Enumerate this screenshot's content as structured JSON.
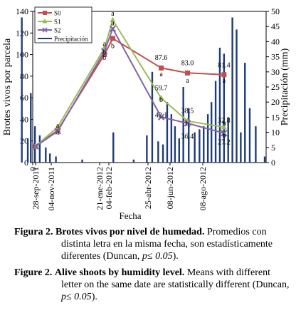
{
  "chart_data": {
    "type": "line",
    "xlabel": "Fecha",
    "ylabel_left": "Brotes vivos por parcela",
    "ylabel_right": "Precipitación (mm)",
    "ylim_left": [
      0,
      140
    ],
    "yticks_left": [
      "0",
      "20",
      "40",
      "60",
      "80",
      "100",
      "120",
      "140"
    ],
    "ylim_right": [
      0,
      50
    ],
    "yticks_right": [
      "0",
      "5",
      "10",
      "15",
      "20",
      "25",
      "30",
      "35",
      "40",
      "45",
      "50"
    ],
    "xticks": [
      "0",
      "28-sep-2011",
      "04-nov-2011",
      "21-ene-2012",
      "04-feb-2012",
      "25-abr-2012",
      "08-jun-2012",
      "08-ago-2012"
    ],
    "legend_position": "top-left",
    "series": [
      {
        "name": "S0",
        "color": "#c0504d",
        "marker": "square",
        "x": [
          "28-sep-2011",
          "04-nov-2011",
          "21-ene-2012",
          "04-feb-2012",
          "25-abr-2012",
          "08-jun-2012",
          "08-ago-2012"
        ],
        "values": [
          15,
          30,
          100,
          115,
          87.6,
          83.0,
          81.4
        ]
      },
      {
        "name": "S1",
        "color": "#9bbb59",
        "marker": "triangle",
        "x": [
          "28-sep-2011",
          "04-nov-2011",
          "21-ene-2012",
          "04-feb-2012",
          "25-abr-2012",
          "08-jun-2012",
          "08-ago-2012"
        ],
        "values": [
          15,
          33,
          106,
          132,
          59.7,
          38.5,
          32.8
        ]
      },
      {
        "name": "S2",
        "color": "#8064a2",
        "marker": "x",
        "x": [
          "28-sep-2011",
          "04-nov-2011",
          "21-ene-2012",
          "04-feb-2012",
          "25-abr-2012",
          "08-jun-2012",
          "08-ago-2012"
        ],
        "values": [
          15,
          29,
          103,
          124,
          42.1,
          36.4,
          27.2
        ]
      },
      {
        "name": "Precipitación",
        "color": "#1f3c78",
        "axis": "right",
        "type": "bar",
        "x": [
          "05-sep-2011",
          "15-sep-2011",
          "20-sep-2011",
          "27-sep-2011",
          "05-oct-2011",
          "15-oct-2011",
          "22-oct-2011",
          "01-nov-2011",
          "15-dic-2011",
          "05-feb-2012",
          "10-mar-2012",
          "01-abr-2012",
          "10-abr-2012",
          "20-abr-2012",
          "28-abr-2012",
          "05-may-2012",
          "12-may-2012",
          "18-may-2012",
          "25-may-2012",
          "01-jun-2012",
          "10-jun-2012",
          "20-jun-2012",
          "28-jun-2012",
          "05-jul-2012",
          "12-jul-2012",
          "18-jul-2012",
          "25-jul-2012",
          "01-ago-2012",
          "08-ago-2012",
          "15-ago-2012",
          "22-ago-2012",
          "29-ago-2012",
          "05-sep-2012",
          "12-sep-2012",
          "20-sep-2012",
          "30-sep-2012",
          "15-oct-2012"
        ],
        "values": [
          48,
          8,
          23,
          12,
          9,
          5,
          3,
          2,
          1,
          10,
          1,
          9,
          30,
          7,
          6,
          20,
          16,
          12,
          8,
          25,
          18,
          10,
          11,
          12,
          16,
          20,
          27,
          38,
          36,
          15,
          48,
          44,
          10,
          33,
          18,
          12,
          2
        ]
      }
    ],
    "annotations": [
      {
        "text": "a",
        "x": "04-nov-2011",
        "y": 32
      },
      {
        "text": "a",
        "x": "04-nov-2011",
        "y": 26
      },
      {
        "text": "a",
        "x": "21-ene-2012",
        "y": 108
      },
      {
        "text": "b",
        "x": "21-ene-2012",
        "y": 100
      },
      {
        "text": "b",
        "x": "21-ene-2012",
        "y": 95
      },
      {
        "text": "a",
        "x": "04-feb-2012",
        "y": 136
      },
      {
        "text": "a",
        "x": "04-feb-2012",
        "y": 127
      },
      {
        "text": "b",
        "x": "04-feb-2012",
        "y": 106
      },
      {
        "text": "87.6",
        "x": "25-abr-2012",
        "y": 95
      },
      {
        "text": "a",
        "x": "25-abr-2012",
        "y": 80
      },
      {
        "text": "59.7",
        "x": "25-abr-2012",
        "y": 67
      },
      {
        "text": "b",
        "x": "25-abr-2012",
        "y": 56
      },
      {
        "text": "42.1",
        "x": "25-abr-2012",
        "y": 42
      },
      {
        "text": "83.0",
        "x": "08-jun-2012",
        "y": 90
      },
      {
        "text": "a",
        "x": "08-jun-2012",
        "y": 74
      },
      {
        "text": "38.5",
        "x": "08-jun-2012",
        "y": 46
      },
      {
        "text": "b",
        "x": "08-jun-2012",
        "y": 34
      },
      {
        "text": "36.4",
        "x": "08-jun-2012",
        "y": 22
      },
      {
        "text": "81.4",
        "x": "08-ago-2012",
        "y": 88
      },
      {
        "text": "a",
        "x": "08-ago-2012",
        "y": 74
      },
      {
        "text": "32.8",
        "x": "08-ago-2012",
        "y": 37
      },
      {
        "text": "b",
        "x": "08-ago-2012",
        "y": 34
      },
      {
        "text": "27.2",
        "x": "08-ago-2012",
        "y": 17
      },
      {
        "text": "b",
        "x": "08-ago-2012",
        "y": 23
      }
    ]
  },
  "caption": {
    "es_label": "Figura 2.",
    "es_title": "Brotes vivos por nivel de humedad.",
    "es_text": "Promedios con distinta letra en la misma fecha, son estadísticamente diferentes (Duncan,",
    "es_stat": "p≤ 0.05",
    "es_end": ").",
    "en_label": "Figure 2.",
    "en_title": "Alive shoots by humidity level.",
    "en_text": "Means with different letter on the same date are statistically different (Duncan,",
    "en_stat": "p≤ 0.05",
    "en_end": ")."
  }
}
